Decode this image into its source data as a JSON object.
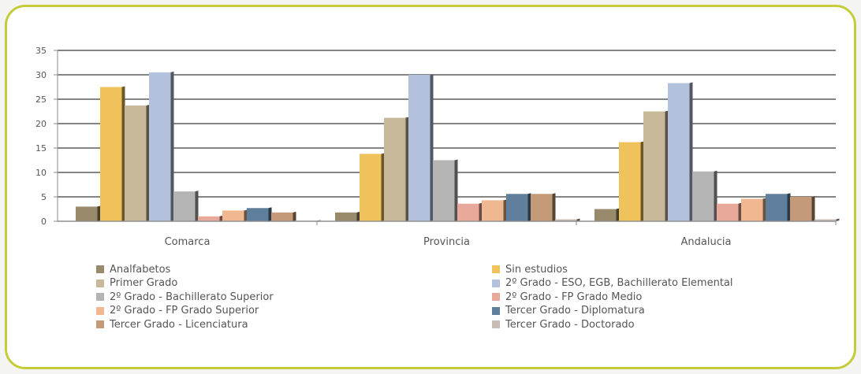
{
  "chart_data": {
    "type": "bar",
    "categories": [
      "Comarca",
      "Provincia",
      "Andalucia"
    ],
    "yticks": [
      "0",
      "5",
      "10",
      "15",
      "20",
      "25",
      "30",
      "35"
    ],
    "ylim": [
      0,
      35
    ],
    "grid": true,
    "legend_position": "bottom",
    "series": [
      {
        "name": "Analfabetos",
        "color": "#9a8a6c",
        "values": [
          3.0,
          1.8,
          2.5
        ]
      },
      {
        "name": "Sin estudios",
        "color": "#f0c25c",
        "values": [
          27.5,
          13.8,
          16.2
        ]
      },
      {
        "name": "Primer Grado",
        "color": "#c8b89a",
        "values": [
          23.7,
          21.2,
          22.5
        ]
      },
      {
        "name": "2º Grado - ESO, EGB, Bachillerato Elemental",
        "color": "#b3c1dc",
        "values": [
          30.5,
          30.0,
          28.3
        ]
      },
      {
        "name": "2º Grado - Bachillerato Superior",
        "color": "#b4b4b4",
        "values": [
          6.1,
          12.5,
          10.2
        ]
      },
      {
        "name": "2º Grado - FP Grado Medio",
        "color": "#e8a89a",
        "values": [
          1.0,
          3.6,
          3.6
        ]
      },
      {
        "name": "2º Grado - FP Grado Superior",
        "color": "#f0b890",
        "values": [
          2.2,
          4.3,
          4.6
        ]
      },
      {
        "name": "Tercer Grado - Diplomatura",
        "color": "#5f7f9c",
        "values": [
          2.7,
          5.6,
          5.6
        ]
      },
      {
        "name": "Tercer Grado - Licenciatura",
        "color": "#c49a78",
        "values": [
          1.8,
          5.6,
          5.0
        ]
      },
      {
        "name": "Tercer Grado - Doctorado",
        "color": "#c8bcb4",
        "values": [
          0.1,
          0.4,
          0.4
        ]
      }
    ]
  }
}
